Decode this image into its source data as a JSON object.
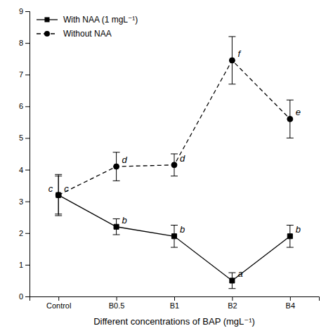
{
  "chart_data": {
    "type": "line",
    "xlabel": "Different concentrations of BAP (mgL⁻¹)",
    "categories": [
      "Control",
      "B0.5",
      "B1",
      "B2",
      "B4"
    ],
    "ylim": [
      0,
      9
    ],
    "yticks": [
      0,
      1,
      2,
      3,
      4,
      5,
      6,
      7,
      8,
      9
    ],
    "legend": "upper left",
    "series": [
      {
        "name": "With NAA (1 mgL⁻¹)",
        "color": "#000000",
        "marker": "square",
        "line_style": "solid",
        "values": [
          3.2,
          2.2,
          1.9,
          0.5,
          1.9
        ],
        "errors": [
          0.65,
          0.25,
          0.35,
          0.25,
          0.35
        ],
        "labels": [
          "c",
          "b",
          "b",
          "a",
          "b"
        ]
      },
      {
        "name": "Without NAA",
        "color": "#000000",
        "marker": "circle",
        "line_style": "dashed",
        "values": [
          3.2,
          4.1,
          4.15,
          7.45,
          5.6
        ],
        "errors": [
          0.6,
          0.45,
          0.35,
          0.75,
          0.6
        ],
        "labels": [
          "c",
          "d",
          "d",
          "f",
          "e"
        ]
      }
    ]
  }
}
